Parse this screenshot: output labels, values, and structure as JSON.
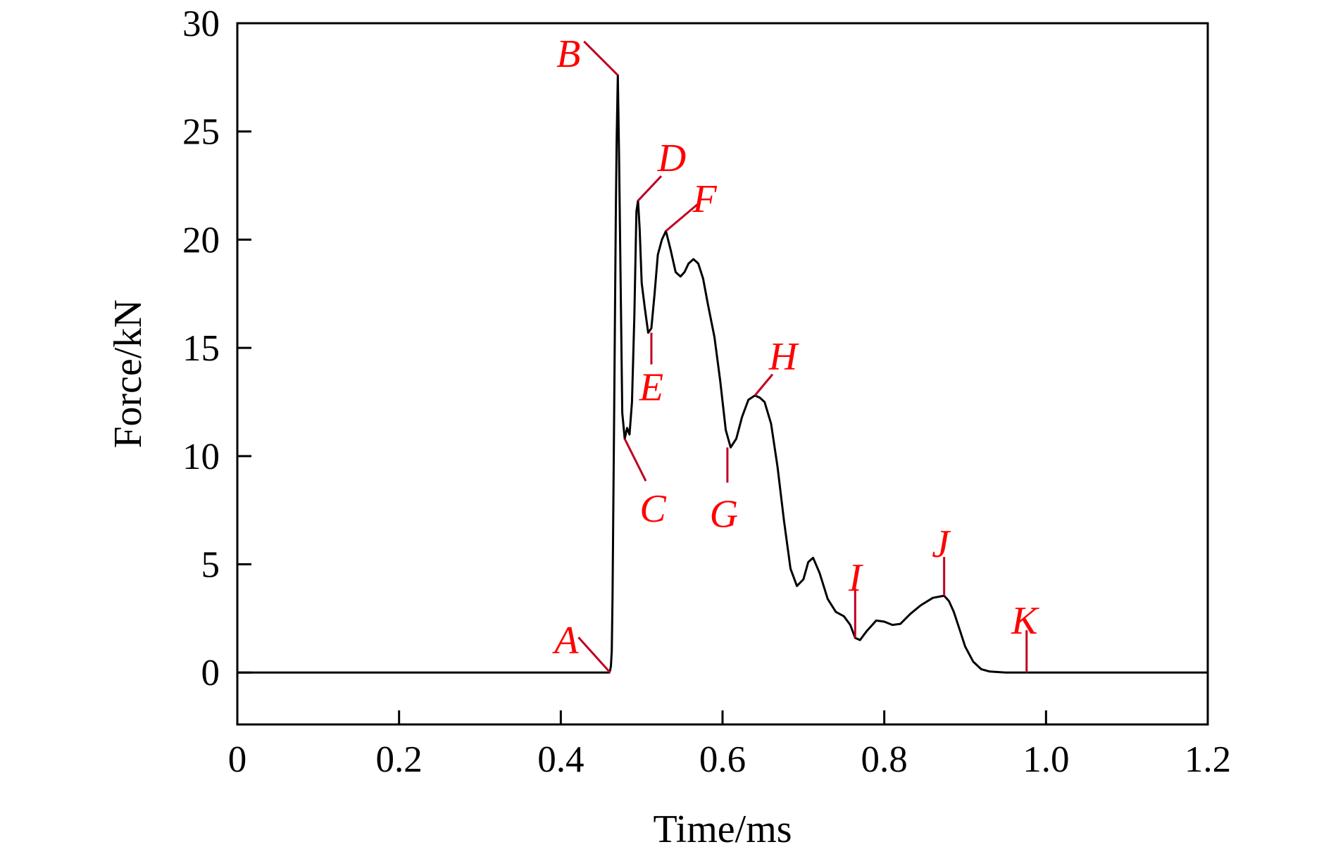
{
  "chart_data": {
    "type": "line",
    "xlabel": "Time/ms",
    "ylabel": "Force/kN",
    "xlim": [
      0,
      1.2
    ],
    "ylim": [
      -2.4,
      30
    ],
    "x_ticks": [
      0,
      0.2,
      0.4,
      0.6,
      0.8,
      1.0,
      1.2
    ],
    "x_tick_labels": [
      "0",
      "0.2",
      "0.4",
      "0.6",
      "0.8",
      "1.0",
      "1.2"
    ],
    "y_ticks": [
      0,
      5,
      10,
      15,
      20,
      25,
      30
    ],
    "y_tick_labels": [
      "0",
      "5",
      "10",
      "15",
      "20",
      "25",
      "30"
    ],
    "grid": false,
    "legend": "none",
    "line_color": "#000000",
    "annotation_color": "#ff0000",
    "marker_color": "#c00020",
    "series": [
      {
        "x": [
          0,
          0.3,
          0.46,
          0.461,
          0.462,
          0.463,
          0.464,
          0.466,
          0.468,
          0.469,
          0.4705,
          0.472,
          0.474,
          0.476,
          0.479,
          0.482,
          0.485,
          0.488,
          0.491,
          0.4935,
          0.4955,
          0.4975,
          0.5,
          0.504,
          0.508,
          0.512,
          0.516,
          0.52,
          0.525,
          0.53,
          0.536,
          0.542,
          0.548,
          0.553,
          0.558,
          0.564,
          0.57,
          0.576,
          0.582,
          0.59,
          0.597,
          0.604,
          0.61,
          0.617,
          0.624,
          0.632,
          0.64,
          0.646,
          0.652,
          0.66,
          0.668,
          0.676,
          0.684,
          0.692,
          0.7,
          0.706,
          0.712,
          0.72,
          0.73,
          0.74,
          0.75,
          0.758,
          0.764,
          0.77,
          0.778,
          0.79,
          0.8,
          0.81,
          0.82,
          0.832,
          0.845,
          0.86,
          0.874,
          0.88,
          0.886,
          0.893,
          0.9,
          0.91,
          0.92,
          0.93,
          0.95,
          0.975,
          1.0,
          1.05,
          1.1,
          1.15,
          1.2
        ],
        "y": [
          0,
          0,
          0,
          0.1,
          0.3,
          1,
          3.5,
          12,
          21,
          24.5,
          27.6,
          24,
          18,
          12,
          10.8,
          11.3,
          11.0,
          12.5,
          16.5,
          21.3,
          21.8,
          20.5,
          18,
          16.8,
          15.7,
          15.9,
          17.5,
          19.3,
          20.0,
          20.4,
          19.5,
          18.5,
          18.3,
          18.5,
          18.9,
          19.1,
          18.9,
          18.2,
          17,
          15.5,
          13.5,
          11.2,
          10.4,
          10.8,
          11.8,
          12.6,
          12.8,
          12.7,
          12.5,
          11.5,
          9.5,
          7,
          4.8,
          4.0,
          4.3,
          5.1,
          5.3,
          4.6,
          3.4,
          2.8,
          2.6,
          2.2,
          1.6,
          1.5,
          1.9,
          2.4,
          2.35,
          2.2,
          2.25,
          2.7,
          3.1,
          3.45,
          3.55,
          3.3,
          2.8,
          2.0,
          1.2,
          0.5,
          0.15,
          0.05,
          0,
          0,
          0,
          0,
          0,
          0,
          0
        ]
      }
    ],
    "annotations": [
      {
        "label": "A",
        "x": 0.461,
        "y": 0
      },
      {
        "label": "B",
        "x": 0.4705,
        "y": 27.6
      },
      {
        "label": "C",
        "x": 0.479,
        "y": 10.8
      },
      {
        "label": "D",
        "x": 0.4955,
        "y": 21.8
      },
      {
        "label": "E",
        "x": 0.512,
        "y": 15.7
      },
      {
        "label": "F",
        "x": 0.53,
        "y": 20.4
      },
      {
        "label": "G",
        "x": 0.606,
        "y": 10.4
      },
      {
        "label": "H",
        "x": 0.64,
        "y": 12.8
      },
      {
        "label": "I",
        "x": 0.764,
        "y": 1.6
      },
      {
        "label": "J",
        "x": 0.874,
        "y": 3.55
      },
      {
        "label": "K",
        "x": 0.976,
        "y": 0
      }
    ]
  }
}
